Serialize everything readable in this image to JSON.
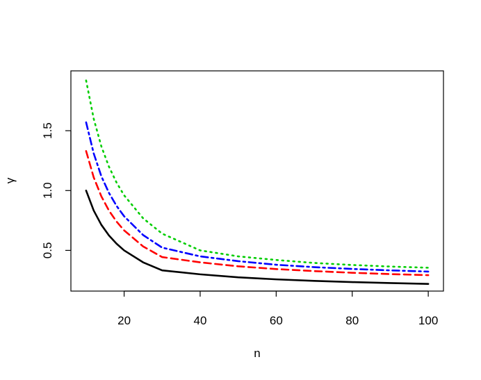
{
  "chart_data": {
    "type": "line",
    "title": "",
    "xlabel": "n",
    "ylabel": "γ",
    "xlim": [
      6,
      104
    ],
    "ylim": [
      0.16,
      2.0
    ],
    "x_ticks": [
      20,
      40,
      60,
      80,
      100
    ],
    "y_ticks": [
      0.5,
      1.0,
      1.5
    ],
    "x_tick_labels": [
      "20",
      "40",
      "60",
      "80",
      "100"
    ],
    "y_tick_labels": [
      "0.5",
      "1.0",
      "1.5"
    ],
    "grid": false,
    "legend": "none",
    "x": [
      10,
      12,
      14,
      16,
      18,
      20,
      25,
      30,
      40,
      50,
      60,
      70,
      80,
      90,
      100
    ],
    "series": [
      {
        "color": "#000000",
        "style": "solid",
        "values": [
          1.0,
          0.833,
          0.714,
          0.625,
          0.556,
          0.5,
          0.4,
          0.333,
          0.3,
          0.275,
          0.258,
          0.245,
          0.235,
          0.227,
          0.22
        ]
      },
      {
        "color": "#ff0000",
        "style": "dashed",
        "values": [
          1.33,
          1.11,
          0.952,
          0.833,
          0.741,
          0.667,
          0.533,
          0.444,
          0.4,
          0.367,
          0.344,
          0.327,
          0.313,
          0.302,
          0.293
        ]
      },
      {
        "color": "#0000ff",
        "style": "dashdot",
        "values": [
          1.57,
          1.31,
          1.12,
          0.981,
          0.872,
          0.785,
          0.628,
          0.523,
          0.45,
          0.41,
          0.38,
          0.36,
          0.345,
          0.333,
          0.323
        ]
      },
      {
        "color": "#00cd00",
        "style": "dotted",
        "values": [
          1.92,
          1.6,
          1.37,
          1.2,
          1.067,
          0.96,
          0.768,
          0.64,
          0.5,
          0.45,
          0.42,
          0.395,
          0.378,
          0.365,
          0.355
        ]
      }
    ]
  }
}
